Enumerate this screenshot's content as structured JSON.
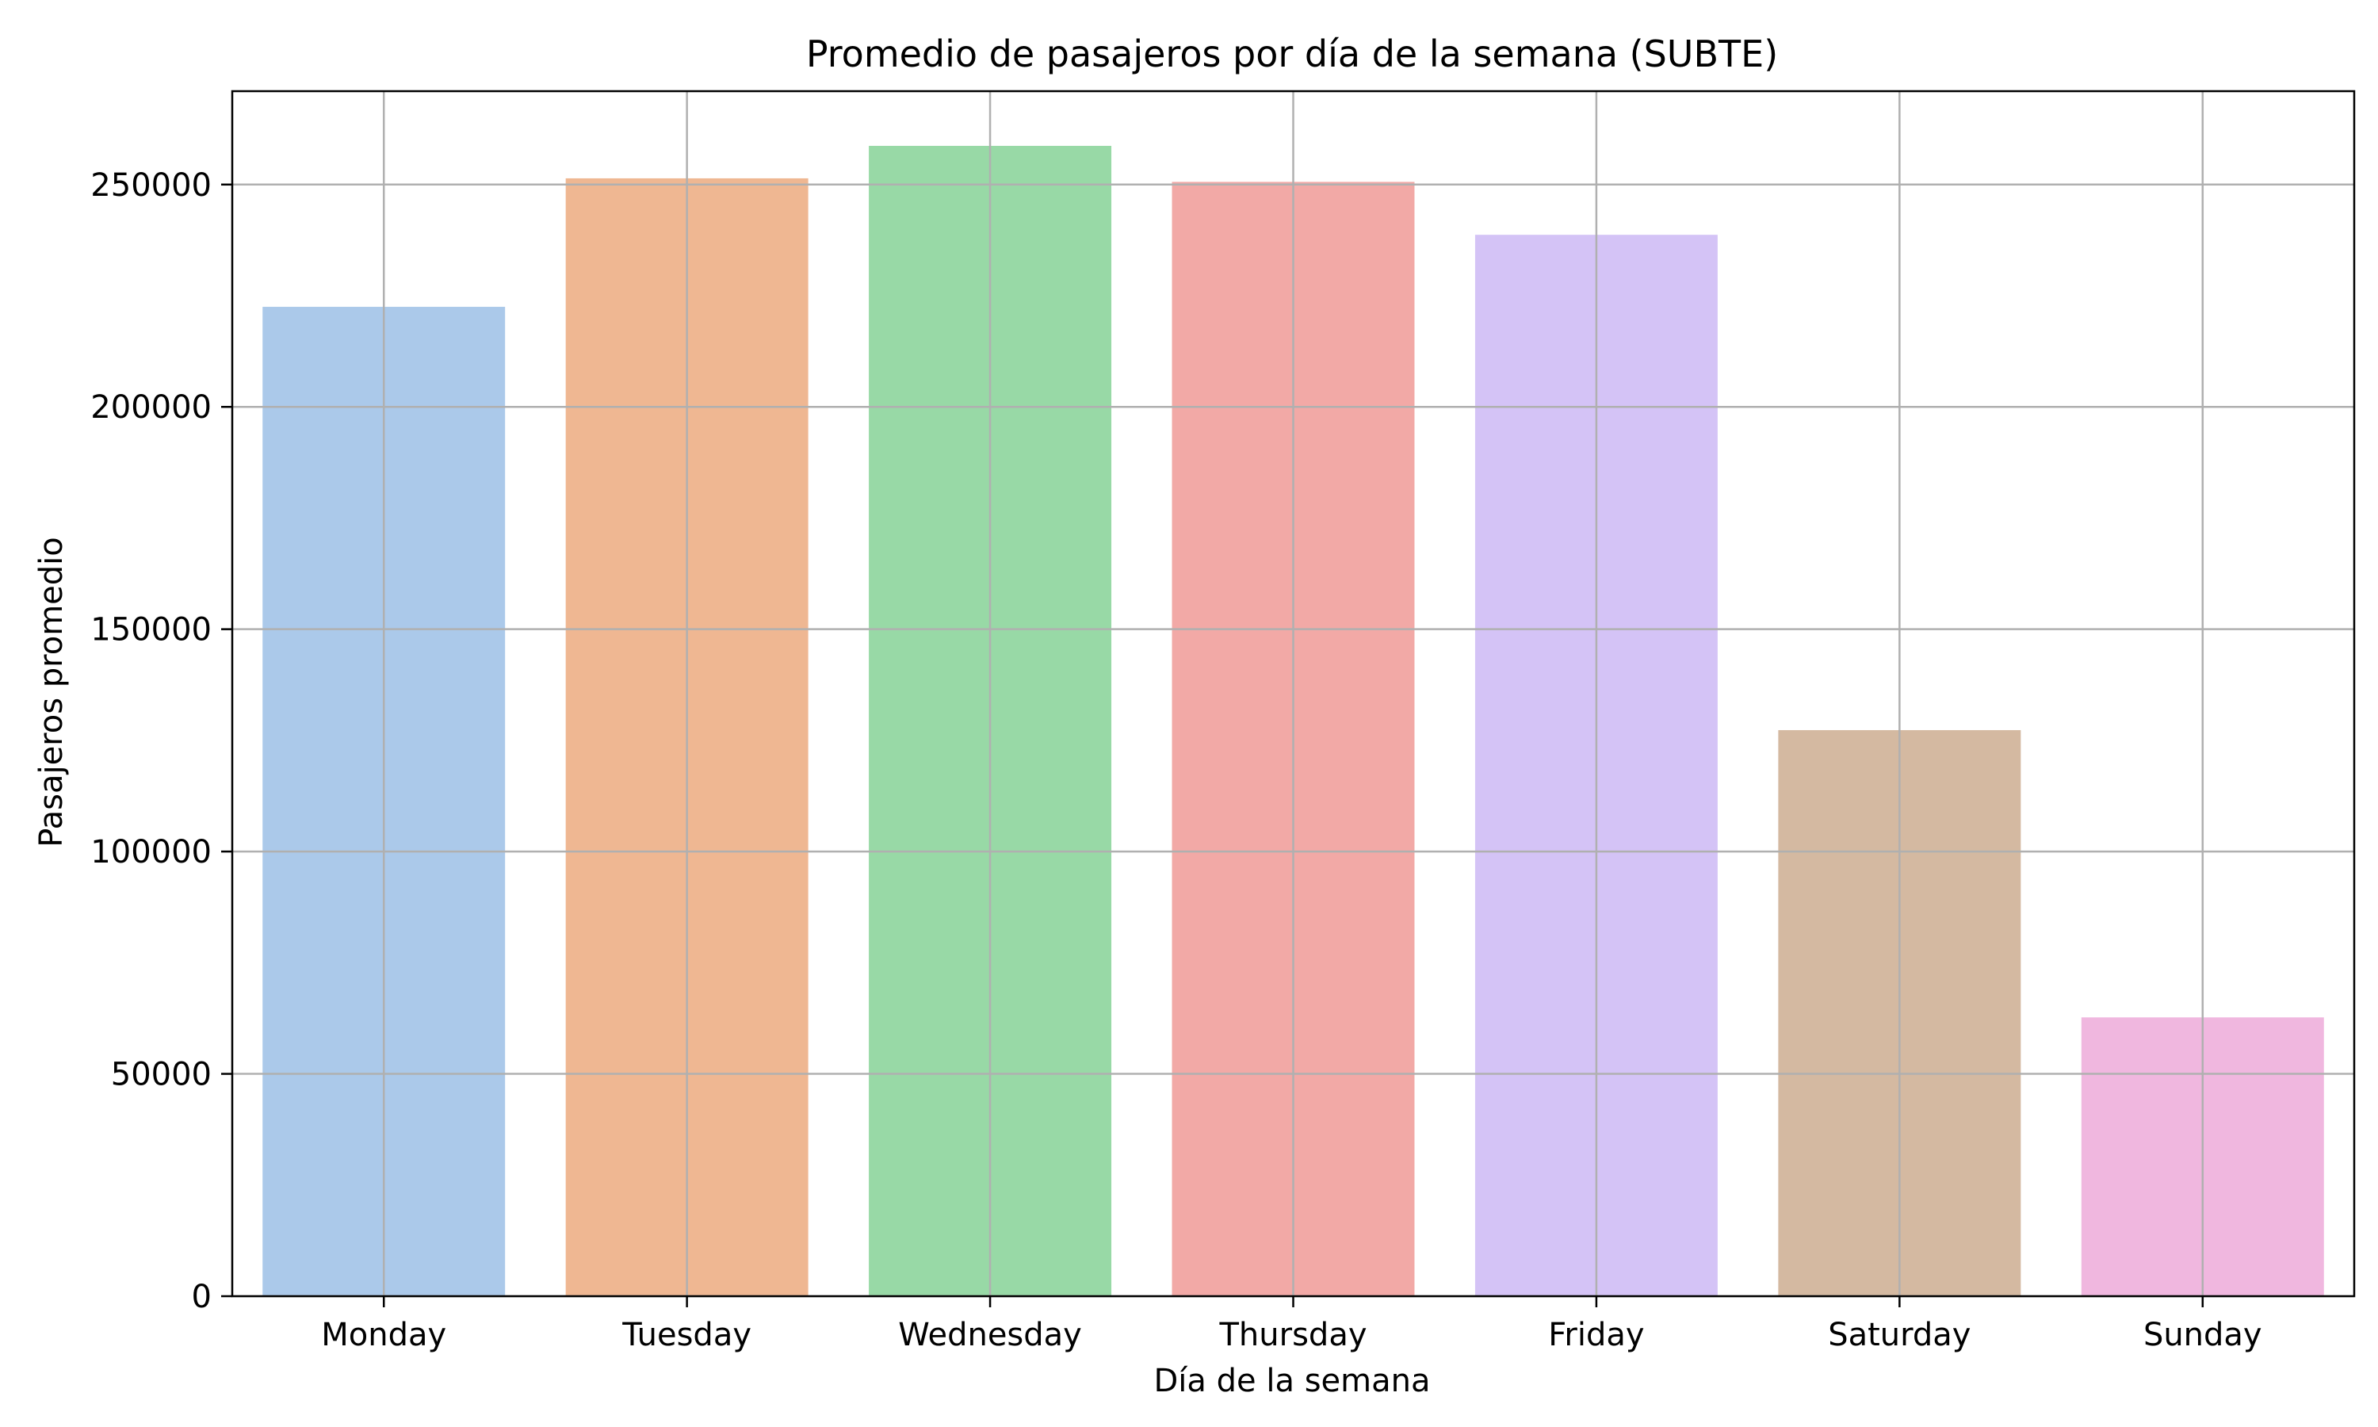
{
  "chart_data": {
    "type": "bar",
    "title": "Promedio de pasajeros por día de la semana (SUBTE)",
    "xlabel": "Día de la semana",
    "ylabel": "Pasajeros promedio",
    "categories": [
      "Monday",
      "Tuesday",
      "Wednesday",
      "Thursday",
      "Friday",
      "Saturday",
      "Sunday"
    ],
    "values": [
      222500,
      251400,
      258700,
      250600,
      238700,
      127300,
      62700
    ],
    "colors": [
      "#abc9ea",
      "#efb792",
      "#98d9a6",
      "#f2a9a6",
      "#d4c3f6",
      "#d4b9a1",
      "#f0b7df"
    ],
    "ylim": [
      0,
      271000
    ],
    "yticks": [
      0,
      50000,
      100000,
      150000,
      200000,
      250000
    ],
    "ytick_labels": [
      "0",
      "50000",
      "100000",
      "150000",
      "200000",
      "250000"
    ],
    "grid": true,
    "grid_color": "#b0b0b0"
  }
}
